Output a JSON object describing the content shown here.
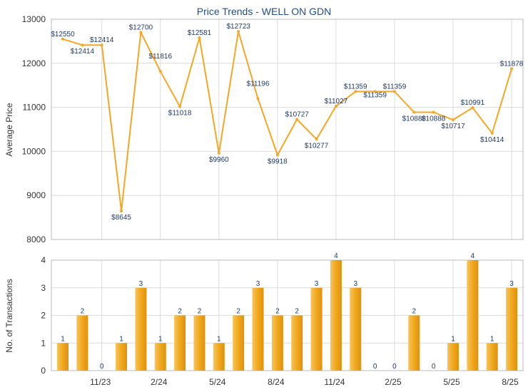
{
  "chart_data": [
    {
      "type": "line",
      "title": "Price Trends - WELL ON GDN",
      "ylabel": "Average Price",
      "ylim": [
        8000,
        13000
      ],
      "yticks": [
        "8000",
        "9000",
        "10000",
        "11000",
        "12000",
        "13000"
      ],
      "grid": true,
      "color": "#f5a623",
      "points": [
        {
          "label": "$12550",
          "value": 12550
        },
        {
          "label": "$12414",
          "value": 12414
        },
        {
          "label": "$12414",
          "value": 12414
        },
        {
          "label": "$8645",
          "value": 8645
        },
        {
          "label": "$12700",
          "value": 12700
        },
        {
          "label": "$11816",
          "value": 11816
        },
        {
          "label": "$11018",
          "value": 11018
        },
        {
          "label": "$12581",
          "value": 12581
        },
        {
          "label": "$9960",
          "value": 9960
        },
        {
          "label": "$12723",
          "value": 12723
        },
        {
          "label": "$11196",
          "value": 11196
        },
        {
          "label": "$9918",
          "value": 9918
        },
        {
          "label": "$10727",
          "value": 10727
        },
        {
          "label": "$10277",
          "value": 10277
        },
        {
          "label": "$11027",
          "value": 11027
        },
        {
          "label": "$11359",
          "value": 11359
        },
        {
          "label": "$11359",
          "value": 11359
        },
        {
          "label": "$11359",
          "value": 11359
        },
        {
          "label": "$10888",
          "value": 10888
        },
        {
          "label": "$10888",
          "value": 10888
        },
        {
          "label": "$10717",
          "value": 10717
        },
        {
          "label": "$10991",
          "value": 10991
        },
        {
          "label": "$10414",
          "value": 10414
        },
        {
          "label": "$11878",
          "value": 11878
        }
      ]
    },
    {
      "type": "bar",
      "ylabel": "No. of Transactions",
      "ylim": [
        0,
        4
      ],
      "yticks": [
        "0",
        "1",
        "2",
        "3",
        "4"
      ],
      "grid": true,
      "color": "#f0a81e",
      "xtick_labels": [
        "11/23",
        "2/24",
        "5/24",
        "8/24",
        "11/24",
        "2/25",
        "5/25",
        "8/25"
      ],
      "values": [
        1,
        2,
        0,
        1,
        3,
        1,
        2,
        2,
        1,
        2,
        3,
        2,
        2,
        3,
        4,
        3,
        0,
        0,
        2,
        0,
        1,
        4,
        1,
        3
      ]
    }
  ]
}
